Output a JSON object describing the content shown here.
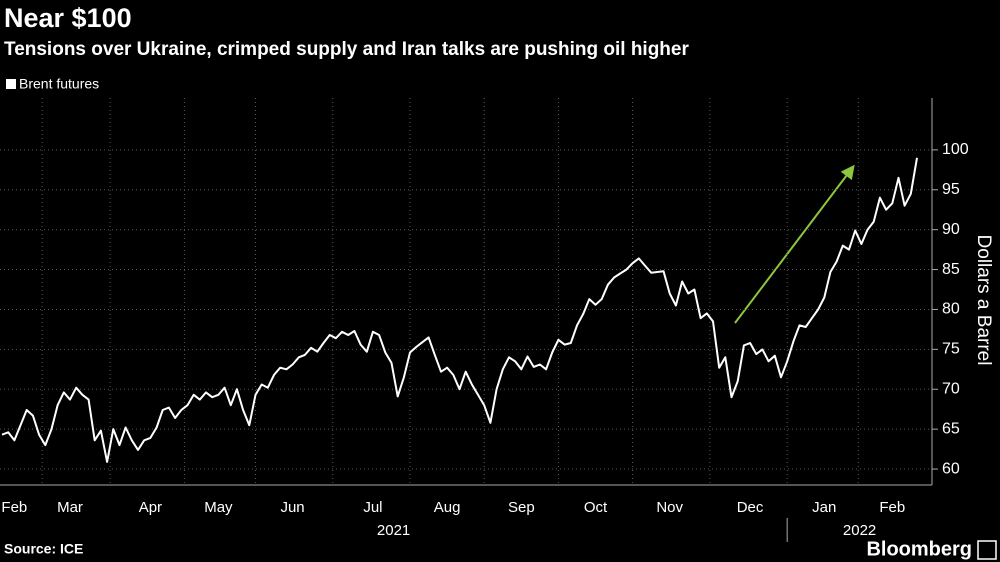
{
  "chart_data": {
    "type": "line",
    "title": "Near $100",
    "subtitle": "Tensions over Ukraine, crimped supply and Iran talks are pushing oil higher",
    "y_axis_label": "Dollars a Barrel",
    "source": "Source: ICE",
    "brand": "Bloomberg",
    "year_labels": [
      "2021",
      "2022"
    ],
    "categories": [
      null,
      null,
      "Feb",
      null,
      null,
      null,
      null,
      null,
      null,
      null,
      null,
      "Mar",
      null,
      null,
      null,
      null,
      null,
      null,
      null,
      null,
      null,
      null,
      null,
      null,
      "Apr",
      null,
      null,
      null,
      null,
      null,
      null,
      null,
      null,
      null,
      null,
      "May",
      null,
      null,
      null,
      null,
      null,
      null,
      null,
      null,
      null,
      null,
      null,
      "Jun",
      null,
      null,
      null,
      null,
      null,
      null,
      null,
      null,
      null,
      null,
      null,
      null,
      "Jul",
      null,
      null,
      null,
      null,
      null,
      null,
      null,
      null,
      null,
      null,
      null,
      "Aug",
      null,
      null,
      null,
      null,
      null,
      null,
      null,
      null,
      null,
      null,
      null,
      "Sep",
      null,
      null,
      null,
      null,
      null,
      null,
      null,
      null,
      null,
      null,
      null,
      "Oct",
      null,
      null,
      null,
      null,
      null,
      null,
      null,
      null,
      null,
      null,
      null,
      "Nov",
      null,
      null,
      null,
      null,
      null,
      null,
      null,
      null,
      null,
      null,
      null,
      null,
      "Dec",
      null,
      null,
      null,
      null,
      null,
      null,
      null,
      null,
      null,
      null,
      null,
      "Jan",
      null,
      null,
      null,
      null,
      null,
      null,
      null,
      null,
      null,
      null,
      "Feb",
      null,
      null,
      null,
      null
    ],
    "series": [
      {
        "name": "Brent futures",
        "color": "#ffffff",
        "values": [
          64.3,
          64.6,
          63.6,
          65.5,
          67.4,
          66.7,
          64.3,
          63.0,
          65.0,
          68.0,
          69.6,
          68.7,
          70.2,
          69.3,
          68.7,
          63.6,
          64.8,
          60.9,
          65.0,
          63.0,
          65.2,
          63.6,
          62.4,
          63.6,
          63.9,
          65.2,
          67.4,
          67.7,
          66.4,
          67.4,
          68.0,
          69.3,
          68.7,
          69.6,
          69.0,
          69.3,
          70.2,
          68.0,
          70.0,
          67.4,
          65.5,
          69.3,
          70.6,
          70.2,
          71.8,
          72.7,
          72.5,
          73.1,
          74.0,
          74.3,
          75.2,
          74.7,
          75.8,
          76.8,
          76.4,
          77.2,
          76.8,
          77.3,
          75.6,
          74.7,
          77.2,
          76.8,
          74.6,
          73.3,
          69.1,
          71.5,
          74.6,
          75.3,
          75.9,
          76.5,
          74.3,
          72.2,
          72.7,
          71.8,
          70.0,
          72.2,
          70.6,
          69.3,
          68.0,
          65.8,
          70.0,
          72.5,
          74.0,
          73.5,
          72.5,
          74.1,
          72.8,
          73.1,
          72.5,
          74.6,
          76.2,
          75.6,
          75.8,
          78.0,
          79.4,
          81.3,
          80.6,
          81.3,
          83.1,
          84.0,
          84.5,
          85.0,
          85.8,
          86.4,
          85.5,
          84.6,
          84.7,
          84.8,
          82.0,
          80.5,
          83.5,
          82.0,
          82.5,
          78.9,
          79.5,
          78.5,
          72.7,
          74.0,
          69.0,
          71.0,
          75.5,
          75.8,
          74.4,
          75.0,
          73.5,
          74.2,
          71.5,
          73.5,
          76.0,
          78.0,
          77.8,
          78.9,
          80.0,
          81.5,
          84.7,
          86.0,
          88.0,
          87.5,
          89.9,
          88.2,
          90.0,
          91.0,
          94.0,
          92.5,
          93.3,
          96.5,
          93.0,
          94.5,
          99.0
        ]
      }
    ],
    "ylim": [
      58,
      106.5
    ],
    "yticks": [
      60,
      65,
      70,
      75,
      80,
      85,
      90,
      95,
      100
    ],
    "grid": true
  }
}
